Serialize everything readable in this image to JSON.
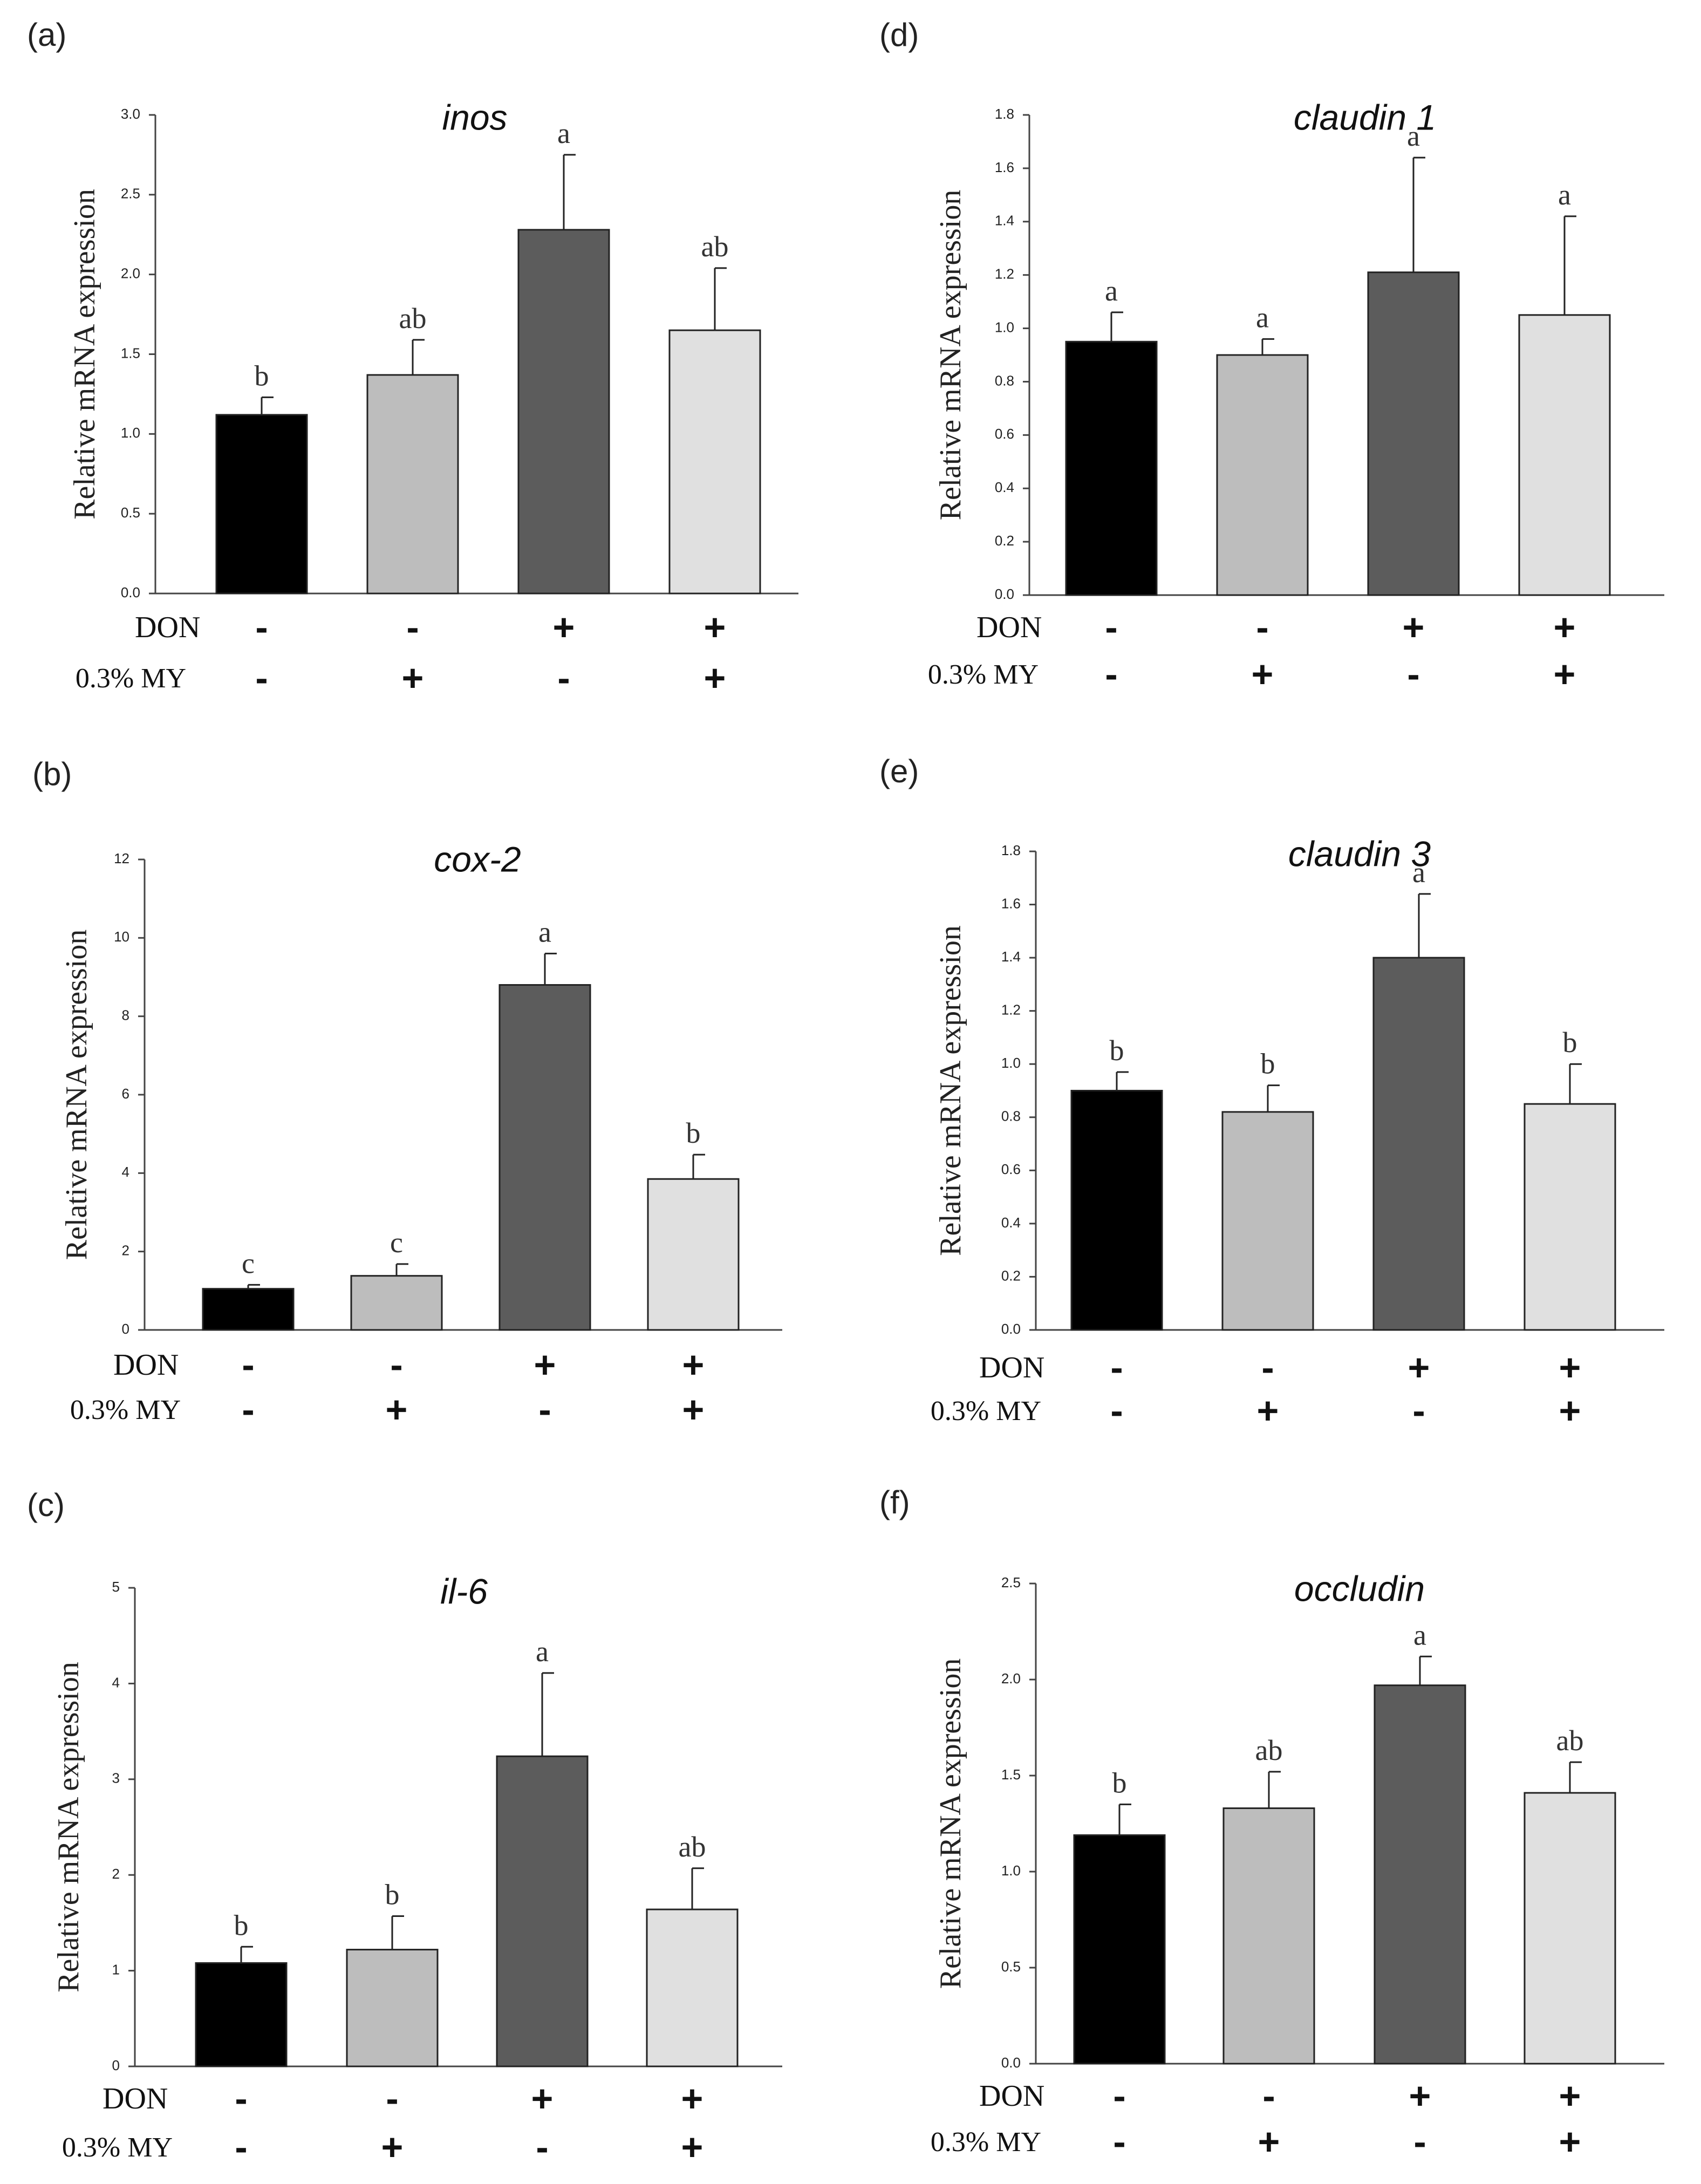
{
  "figure": {
    "row_labels": [
      "DON",
      "0.3% MY"
    ],
    "group_signs": [
      [
        "-",
        "-",
        "+",
        "+"
      ],
      [
        "-",
        "+",
        "-",
        "+"
      ]
    ],
    "colors": [
      "#000000",
      "#bdbdbd",
      "#5c5c5c",
      "#e0e0e0"
    ]
  },
  "chart_data": [
    {
      "panel": "(a)",
      "type": "bar",
      "title": "inos",
      "ylabel": "Relative mRNA expression",
      "ylim": [
        0,
        3.0
      ],
      "ticks": [
        "0.0",
        "0.5",
        "1.0",
        "1.5",
        "2.0",
        "2.5",
        "3.0"
      ],
      "values": [
        1.12,
        1.37,
        2.28,
        1.65
      ],
      "errors": [
        0.11,
        0.22,
        0.47,
        0.39
      ],
      "letters": [
        "b",
        "ab",
        "a",
        "ab"
      ]
    },
    {
      "panel": "(b)",
      "type": "bar",
      "title": "cox-2",
      "ylabel": "Relative mRNA expression",
      "ylim": [
        0,
        12
      ],
      "ticks": [
        "0",
        "2",
        "4",
        "6",
        "8",
        "10",
        "12"
      ],
      "values": [
        1.05,
        1.38,
        8.8,
        3.85
      ],
      "errors": [
        0.1,
        0.3,
        0.8,
        0.62
      ],
      "letters": [
        "c",
        "c",
        "a",
        "b"
      ]
    },
    {
      "panel": "(c)",
      "type": "bar",
      "title": "il-6",
      "ylabel": "Relative mRNA expression",
      "ylim": [
        0,
        5
      ],
      "ticks": [
        "0",
        "1",
        "2",
        "3",
        "4",
        "5"
      ],
      "values": [
        1.08,
        1.22,
        3.24,
        1.64
      ],
      "errors": [
        0.17,
        0.35,
        0.87,
        0.43
      ],
      "letters": [
        "b",
        "b",
        "a",
        "ab"
      ]
    },
    {
      "panel": "(d)",
      "type": "bar",
      "title": "claudin 1",
      "ylabel": "Relative mRNA expression",
      "ylim": [
        0,
        1.8
      ],
      "ticks": [
        "0.0",
        "0.2",
        "0.4",
        "0.6",
        "0.8",
        "1.0",
        "1.2",
        "1.4",
        "1.6",
        "1.8"
      ],
      "values": [
        0.95,
        0.9,
        1.21,
        1.05
      ],
      "errors": [
        0.11,
        0.06,
        0.43,
        0.37
      ],
      "letters": [
        "a",
        "a",
        "a",
        "a"
      ]
    },
    {
      "panel": "(e)",
      "type": "bar",
      "title": "claudin 3",
      "ylabel": "Relative mRNA expression",
      "ylim": [
        0,
        1.8
      ],
      "ticks": [
        "0.0",
        "0.2",
        "0.4",
        "0.6",
        "0.8",
        "1.0",
        "1.2",
        "1.4",
        "1.6",
        "1.8"
      ],
      "values": [
        0.9,
        0.82,
        1.4,
        0.85
      ],
      "errors": [
        0.07,
        0.1,
        0.24,
        0.15
      ],
      "letters": [
        "b",
        "b",
        "a",
        "b"
      ]
    },
    {
      "panel": "(f)",
      "type": "bar",
      "title": "occludin",
      "ylabel": "Relative mRNA expression",
      "ylim": [
        0,
        2.5
      ],
      "ticks": [
        "0.0",
        "0.5",
        "1.0",
        "1.5",
        "2.0",
        "2.5"
      ],
      "values": [
        1.19,
        1.33,
        1.97,
        1.41
      ],
      "errors": [
        0.16,
        0.19,
        0.15,
        0.16
      ],
      "letters": [
        "b",
        "ab",
        "a",
        "ab"
      ]
    }
  ]
}
